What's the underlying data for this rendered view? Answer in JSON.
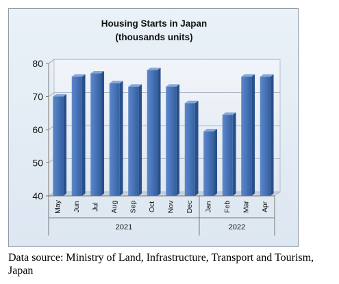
{
  "chart_data": {
    "type": "bar",
    "title": "Housing Starts in Japan",
    "subtitle": "(thousands units)",
    "categories": [
      "May",
      "Jun",
      "Jul",
      "Aug",
      "Sep",
      "Oct",
      "Nov",
      "Dec",
      "Jan",
      "Feb",
      "Mar",
      "Apr"
    ],
    "groups": [
      {
        "label": "2021",
        "categories": [
          "May",
          "Jun",
          "Jul",
          "Aug",
          "Sep",
          "Oct",
          "Nov",
          "Dec"
        ]
      },
      {
        "label": "2022",
        "categories": [
          "Jan",
          "Feb",
          "Mar",
          "Apr"
        ]
      }
    ],
    "values": [
      70,
      76,
      77,
      74,
      73,
      78,
      73,
      68,
      59.5,
      64.5,
      76,
      76
    ],
    "ylim": [
      40,
      80
    ],
    "yticks": [
      40,
      50,
      60,
      70,
      80
    ],
    "grid": true,
    "legend": "none",
    "bar_color": "#3e6db3",
    "xlabel": "",
    "ylabel": ""
  },
  "source_note": "Data source: Ministry of Land, Infrastructure, Transport and Tourism, Japan"
}
